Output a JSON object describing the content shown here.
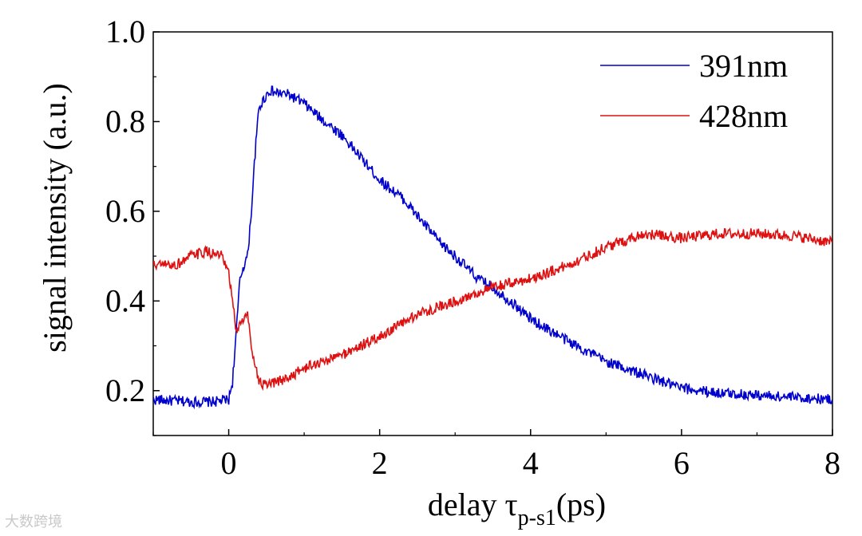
{
  "chart_data": {
    "type": "line",
    "title": "",
    "xlabel": "delay τ",
    "xlabel_sub": "p-s1",
    "xlabel_suffix": "(ps)",
    "ylabel": "signal intensity (a.u.)",
    "xlim": [
      -1,
      8
    ],
    "ylim": [
      0.1,
      1.0
    ],
    "xticks": [
      0,
      2,
      4,
      6,
      8
    ],
    "yticks": [
      0.2,
      0.4,
      0.6,
      0.8,
      1.0
    ],
    "xtick_labels": [
      "0",
      "2",
      "4",
      "6",
      "8"
    ],
    "ytick_labels": [
      "0.2",
      "0.4",
      "0.6",
      "0.8",
      "1.0"
    ],
    "grid": false,
    "legend_position": "top-right",
    "series": [
      {
        "name": "391nm",
        "color": "#0000cc",
        "x": [
          -1.0,
          -0.5,
          -0.2,
          0.0,
          0.05,
          0.1,
          0.15,
          0.2,
          0.25,
          0.3,
          0.35,
          0.4,
          0.5,
          0.55,
          0.6,
          0.8,
          1.0,
          1.2,
          1.5,
          1.8,
          2.0,
          2.3,
          2.5,
          2.8,
          3.0,
          3.3,
          3.5,
          3.8,
          4.0,
          4.5,
          5.0,
          5.5,
          6.0,
          6.5,
          7.0,
          7.5,
          8.0
        ],
        "y": [
          0.18,
          0.175,
          0.175,
          0.18,
          0.22,
          0.33,
          0.45,
          0.48,
          0.5,
          0.6,
          0.73,
          0.83,
          0.86,
          0.87,
          0.865,
          0.86,
          0.84,
          0.81,
          0.77,
          0.71,
          0.67,
          0.63,
          0.59,
          0.53,
          0.5,
          0.45,
          0.43,
          0.39,
          0.36,
          0.31,
          0.265,
          0.235,
          0.205,
          0.195,
          0.19,
          0.185,
          0.18
        ],
        "noise": 0.012
      },
      {
        "name": "428nm",
        "color": "#dd1111",
        "x": [
          -1.0,
          -0.7,
          -0.5,
          -0.3,
          -0.1,
          0.0,
          0.05,
          0.1,
          0.15,
          0.2,
          0.25,
          0.3,
          0.4,
          0.5,
          0.8,
          1.0,
          1.5,
          2.0,
          2.5,
          3.0,
          3.5,
          4.0,
          4.5,
          5.0,
          5.5,
          6.0,
          6.5,
          7.0,
          7.5,
          8.0
        ],
        "y": [
          0.48,
          0.48,
          0.5,
          0.51,
          0.5,
          0.46,
          0.4,
          0.33,
          0.35,
          0.36,
          0.37,
          0.3,
          0.22,
          0.21,
          0.23,
          0.25,
          0.28,
          0.32,
          0.37,
          0.4,
          0.43,
          0.45,
          0.48,
          0.52,
          0.55,
          0.54,
          0.55,
          0.55,
          0.545,
          0.53
        ],
        "noise": 0.012
      }
    ]
  },
  "watermark": "大数跨境"
}
